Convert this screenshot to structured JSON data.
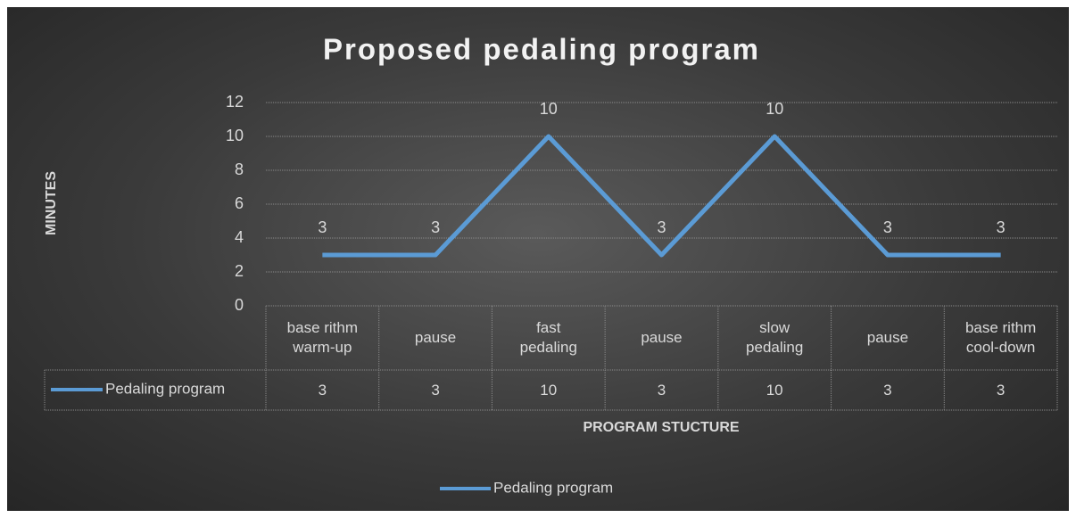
{
  "chart_data": {
    "type": "line",
    "title": "Proposed pedaling program",
    "x_label": "PROGRAM STUCTURE",
    "y_label": "MINUTES",
    "categories": [
      "base rithm warm-up",
      "pause",
      "fast pedaling",
      "pause",
      "slow pedaling",
      "pause",
      "base rithm cool-down"
    ],
    "series": [
      {
        "name": "Pedaling program",
        "color": "#5b9bd5",
        "values": [
          3,
          3,
          10,
          3,
          10,
          3,
          3
        ]
      }
    ],
    "ylim": [
      0,
      12
    ],
    "yticks": [
      0,
      2,
      4,
      6,
      8,
      10,
      12
    ],
    "grid": true,
    "legend": "bottom",
    "data_table": true
  }
}
